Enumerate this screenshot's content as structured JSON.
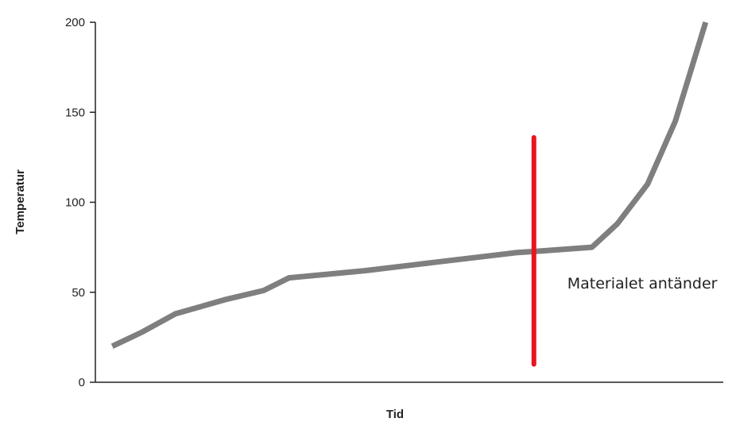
{
  "chart_data": {
    "type": "line",
    "xlabel": "Tid",
    "ylabel": "Temperatur",
    "ylim": [
      0,
      200
    ],
    "yticks": [
      0,
      50,
      100,
      150,
      200
    ],
    "grid": false,
    "series": [
      {
        "x": [
          0,
          1.2,
          2.5,
          4.5,
          6.0,
          7.0,
          10.0,
          13.0,
          16.0,
          17.0,
          19.0,
          20.0,
          21.2,
          22.3,
          23.5
        ],
        "values": [
          20,
          28,
          38,
          46,
          51,
          58,
          62,
          67,
          72,
          73,
          75,
          88,
          110,
          145,
          200
        ]
      }
    ],
    "annotations": [
      {
        "text": "Materialet antänder",
        "x": 16.7,
        "y_range": [
          10,
          136
        ]
      }
    ],
    "colors": {
      "line": "#7f7f7f",
      "marker_line": "#e8141e",
      "axis": "#222222"
    }
  }
}
